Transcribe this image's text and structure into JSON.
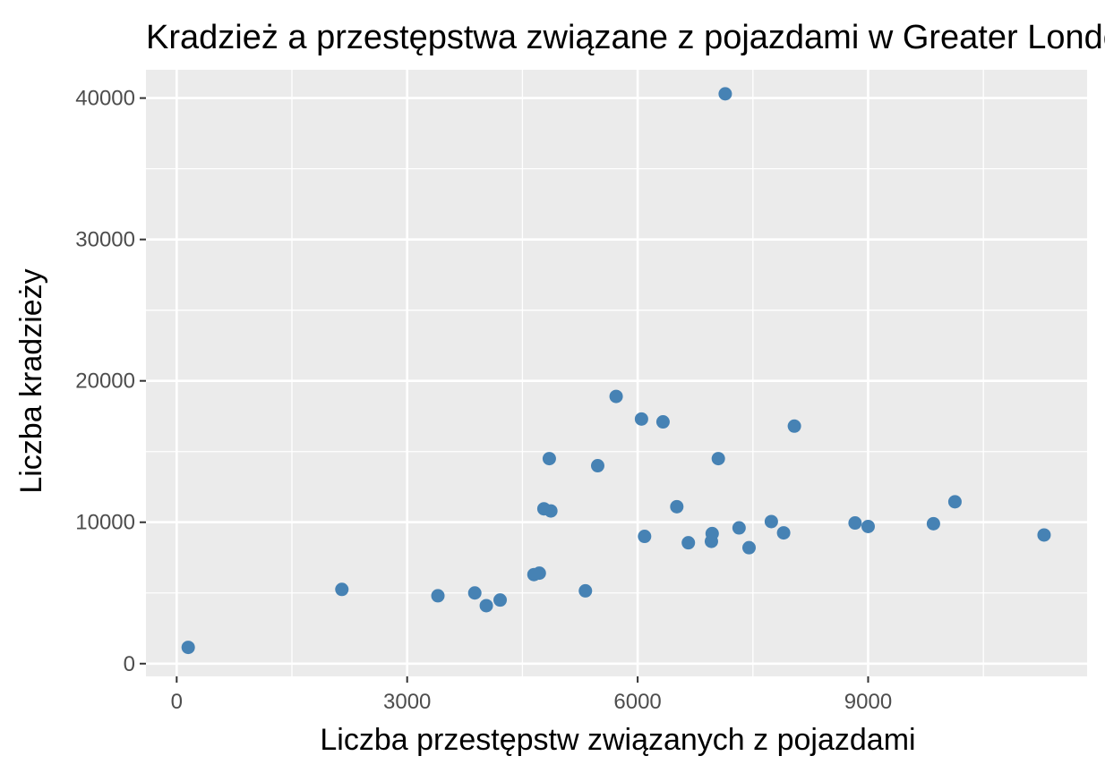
{
  "chart_data": {
    "type": "scatter",
    "title": "Kradzież a przestępstwa związane z pojazdami w Greater Londo",
    "xlabel": "Liczba przestępstw związanych z pojazdami",
    "ylabel": "Liczba kradzieży",
    "xlim": [
      -400,
      11850
    ],
    "ylim": [
      -900,
      42000
    ],
    "xticks": [
      0,
      3000,
      6000,
      9000
    ],
    "xtick_labels": [
      "0",
      "3000",
      "6000",
      "9000"
    ],
    "yticks": [
      0,
      10000,
      20000,
      30000,
      40000
    ],
    "ytick_labels": [
      "0",
      "10000",
      "20000",
      "30000",
      "40000"
    ],
    "grid": true,
    "legend": "none",
    "colors": {
      "panel": "#ebebeb",
      "grid": "#ffffff",
      "point": "#4682b4",
      "tick": "#333333"
    },
    "points": [
      {
        "x": 150,
        "y": 1150
      },
      {
        "x": 2150,
        "y": 5250
      },
      {
        "x": 3400,
        "y": 4800
      },
      {
        "x": 3880,
        "y": 5000
      },
      {
        "x": 4030,
        "y": 4100
      },
      {
        "x": 4210,
        "y": 4500
      },
      {
        "x": 4650,
        "y": 6300
      },
      {
        "x": 4720,
        "y": 6400
      },
      {
        "x": 4780,
        "y": 10950
      },
      {
        "x": 4870,
        "y": 10800
      },
      {
        "x": 4850,
        "y": 14500
      },
      {
        "x": 5320,
        "y": 5150
      },
      {
        "x": 5480,
        "y": 14000
      },
      {
        "x": 5720,
        "y": 18900
      },
      {
        "x": 6050,
        "y": 17300
      },
      {
        "x": 6090,
        "y": 9000
      },
      {
        "x": 6330,
        "y": 17100
      },
      {
        "x": 6510,
        "y": 11100
      },
      {
        "x": 6660,
        "y": 8550
      },
      {
        "x": 6960,
        "y": 8650
      },
      {
        "x": 6970,
        "y": 9200
      },
      {
        "x": 7050,
        "y": 14500
      },
      {
        "x": 7140,
        "y": 40300
      },
      {
        "x": 7320,
        "y": 9600
      },
      {
        "x": 7450,
        "y": 8200
      },
      {
        "x": 7740,
        "y": 10050
      },
      {
        "x": 7900,
        "y": 9250
      },
      {
        "x": 8040,
        "y": 16800
      },
      {
        "x": 8830,
        "y": 9950
      },
      {
        "x": 9000,
        "y": 9700
      },
      {
        "x": 9850,
        "y": 9900
      },
      {
        "x": 10130,
        "y": 11450
      },
      {
        "x": 11290,
        "y": 9100
      }
    ]
  }
}
